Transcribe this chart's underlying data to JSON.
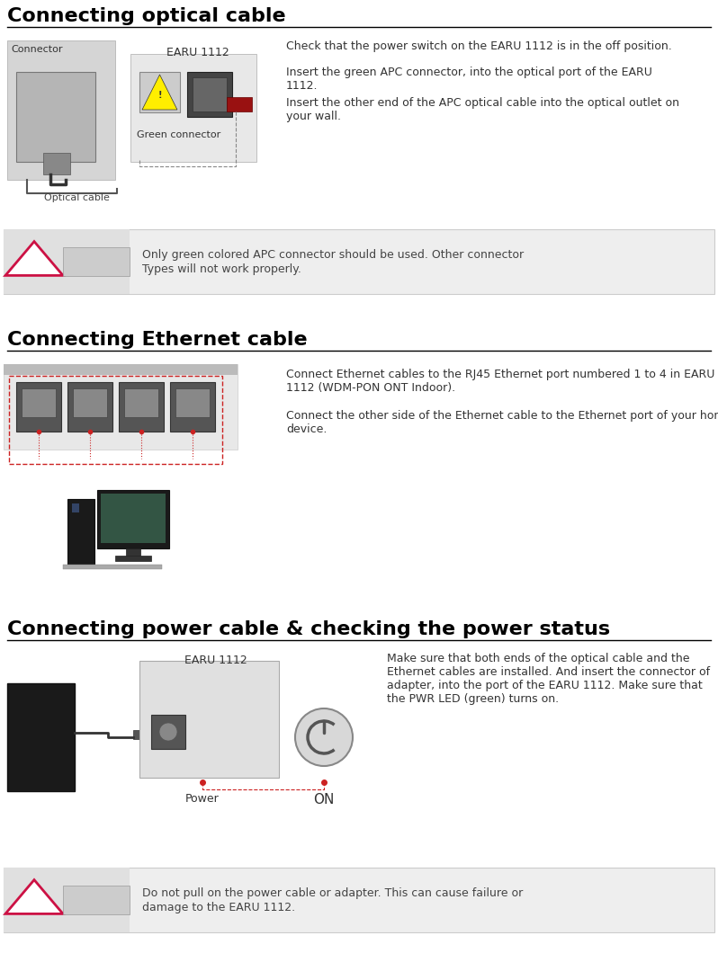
{
  "bg_color": "#ffffff",
  "section1_title": "Connecting optical cable",
  "section1_text1": "Check that the power switch on the EARU 1112 is in the off position.",
  "section1_text2": "Insert the green APC connector, into the optical port of the EARU\n1112.",
  "section1_text3": "Insert the other end of the APC optical cable into the optical outlet on\nyour wall.",
  "caution1_text": "Only green colored APC connector should be used. Other connector\nTypes will not work properly.",
  "section2_title": "Connecting Ethernet cable",
  "section2_text1": "Connect Ethernet cables to the RJ45 Ethernet port numbered 1 to 4 in EARU\n1112 (WDM-PON ONT Indoor).",
  "section2_text2": "Connect the other side of the Ethernet cable to the Ethernet port of your home\ndevice.",
  "section3_title": "Connecting power cable & checking the power status",
  "section3_text1": "Make sure that both ends of the optical cable and the\nEthernet cables are installed. And insert the connector of\nadapter, into the port of the EARU 1112. Make sure that\nthe PWR LED (green) turns on.",
  "caution2_text": "Do not pull on the power cable or adapter. This can cause failure or\ndamage to the EARU 1112.",
  "title_fontsize": 16,
  "body_fontsize": 9,
  "caution_fontsize": 9,
  "label_small_fontsize": 8,
  "caution_bg": "#eeeeee",
  "caution_icon_red": "#cc1144",
  "title_bold_color": "#000000",
  "body_text_color": "#333333",
  "caution_text_color": "#444444",
  "label_gray": "#555555"
}
